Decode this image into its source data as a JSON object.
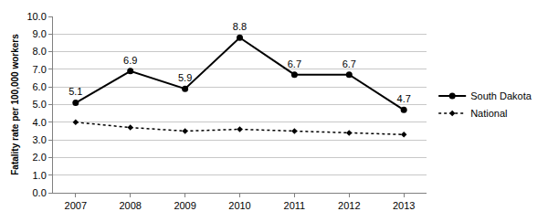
{
  "chart_data": {
    "type": "line",
    "y_label": "Fatality rate per 100,000 workers",
    "categories": [
      "2007",
      "2008",
      "2009",
      "2010",
      "2011",
      "2012",
      "2013"
    ],
    "series": [
      {
        "name": "South Dakota",
        "color": "#000000",
        "marker": "circle",
        "line_style": "solid",
        "data_labels": true,
        "values": [
          5.1,
          6.9,
          5.9,
          8.8,
          6.7,
          6.7,
          4.7
        ]
      },
      {
        "name": "National",
        "color": "#000000",
        "marker": "diamond",
        "line_style": "dot",
        "data_labels": false,
        "values": [
          4.0,
          3.7,
          3.5,
          3.6,
          3.5,
          3.4,
          3.3
        ]
      }
    ],
    "ylim": [
      0,
      10
    ],
    "yticks": [
      {
        "value": 0,
        "label": "0.0"
      },
      {
        "value": 1,
        "label": "1.0"
      },
      {
        "value": 2,
        "label": "2.0"
      },
      {
        "value": 3,
        "label": "3.0"
      },
      {
        "value": 4,
        "label": "4.0"
      },
      {
        "value": 5,
        "label": "5.0"
      },
      {
        "value": 6,
        "label": "6.0"
      },
      {
        "value": 7,
        "label": "7.0"
      },
      {
        "value": 8,
        "label": "8.0"
      },
      {
        "value": 9,
        "label": "9.0"
      },
      {
        "value": 10,
        "label": "10.0"
      }
    ],
    "grid": true,
    "legend": "right"
  }
}
